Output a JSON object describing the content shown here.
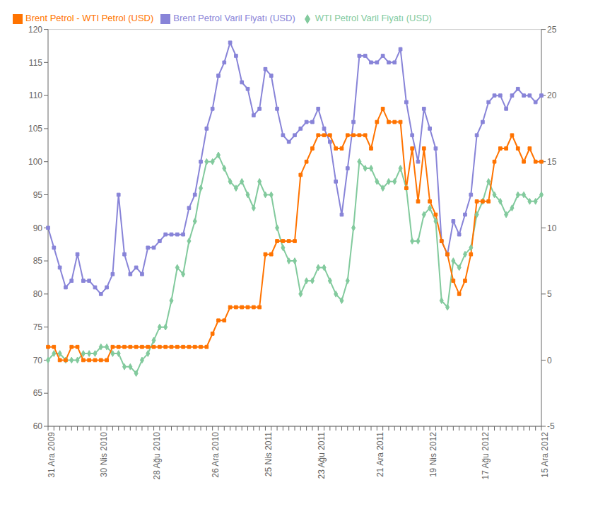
{
  "chart_data": {
    "type": "line",
    "categories": [
      "31 Ara 2009",
      null,
      null,
      null,
      null,
      null,
      null,
      null,
      null,
      "30 Nis 2010",
      null,
      null,
      null,
      null,
      null,
      null,
      null,
      null,
      "28 Ağu 2010",
      null,
      null,
      null,
      null,
      null,
      null,
      null,
      null,
      null,
      "26 Ara 2010",
      null,
      null,
      null,
      null,
      null,
      null,
      null,
      null,
      "25 Nis 2011",
      null,
      null,
      null,
      null,
      null,
      null,
      null,
      null,
      "23 Ağu 2011",
      null,
      null,
      null,
      null,
      null,
      null,
      null,
      null,
      null,
      "21 Ara 2011",
      null,
      null,
      null,
      null,
      null,
      null,
      null,
      null,
      "19 Nis 2012",
      null,
      null,
      null,
      null,
      null,
      null,
      null,
      null,
      "17 Ağu 2012",
      null,
      null,
      null,
      null,
      null,
      null,
      null,
      null,
      null,
      "15 Ara 2012"
    ],
    "series": [
      {
        "name": "Brent Petrol Varil Fiyatı (USD)",
        "color": "#8884d8",
        "marker": "square",
        "values": [
          90,
          87,
          84,
          81,
          82,
          86,
          82,
          82,
          81,
          80,
          81,
          83,
          95,
          86,
          83,
          84,
          83,
          87,
          87,
          88,
          89,
          89,
          89,
          89,
          93,
          95,
          100,
          105,
          108,
          113,
          115,
          118,
          116,
          112,
          111,
          107,
          108,
          114,
          113,
          108,
          104,
          103,
          104,
          105,
          106,
          106,
          108,
          105,
          103,
          97,
          92,
          99,
          106,
          116,
          116,
          115,
          115,
          116,
          115,
          115,
          117,
          109,
          104,
          100,
          108,
          105,
          102,
          88,
          86,
          91,
          89,
          92,
          95,
          104,
          106,
          109,
          110,
          110,
          108,
          110,
          111,
          110,
          110,
          109,
          110
        ]
      },
      {
        "name": "WTI Petrol Varil Fiyatı (USD)",
        "color": "#82ca9d",
        "marker": "diamond",
        "values": [
          70,
          71,
          71,
          70,
          70,
          70,
          71,
          71,
          71,
          72,
          72,
          71,
          71,
          69,
          69,
          68,
          70,
          71,
          73,
          75,
          75,
          79,
          84,
          83,
          88,
          91,
          96,
          100,
          100,
          101,
          99,
          97,
          96,
          97,
          95,
          93,
          97,
          95,
          95,
          90,
          87,
          85,
          85,
          80,
          82,
          82,
          84,
          84,
          82,
          80,
          79,
          82,
          90,
          100,
          99,
          99,
          97,
          96,
          97,
          97,
          99,
          96,
          88,
          88,
          92,
          93,
          91,
          79,
          78,
          85,
          84,
          86,
          87,
          92,
          94,
          97,
          95,
          94,
          92,
          93,
          95,
          95,
          94,
          94,
          95
        ]
      },
      {
        "name": "Brent Petrol - WTI Petrol (USD)",
        "color": "#ff7300",
        "marker": "square",
        "axis": "y2",
        "values": [
          1,
          1,
          0,
          0,
          1,
          1,
          0,
          0,
          0,
          0,
          0,
          1,
          1,
          1,
          1,
          1,
          1,
          1,
          1,
          1,
          1,
          1,
          1,
          1,
          1,
          1,
          1,
          1,
          2,
          3,
          3,
          4,
          4,
          4,
          4,
          4,
          4,
          8,
          8,
          9,
          9,
          9,
          9,
          14,
          15,
          16,
          17,
          17,
          17,
          16,
          16,
          17,
          17,
          17,
          17,
          16,
          18,
          19,
          18,
          18,
          18,
          13,
          16,
          12,
          16,
          12,
          11,
          9,
          8,
          6,
          5,
          6,
          8,
          12,
          12,
          12,
          15,
          16,
          16,
          17,
          16,
          15,
          16,
          15,
          15
        ]
      }
    ],
    "ylim": [
      60,
      120
    ],
    "yticks": [
      60,
      65,
      70,
      75,
      80,
      85,
      90,
      95,
      100,
      105,
      110,
      115,
      120
    ],
    "y2lim": [
      -5,
      25
    ],
    "y2ticks": [
      -5,
      0,
      5,
      10,
      15,
      20,
      25
    ],
    "grid": true,
    "legend": "upper left"
  }
}
